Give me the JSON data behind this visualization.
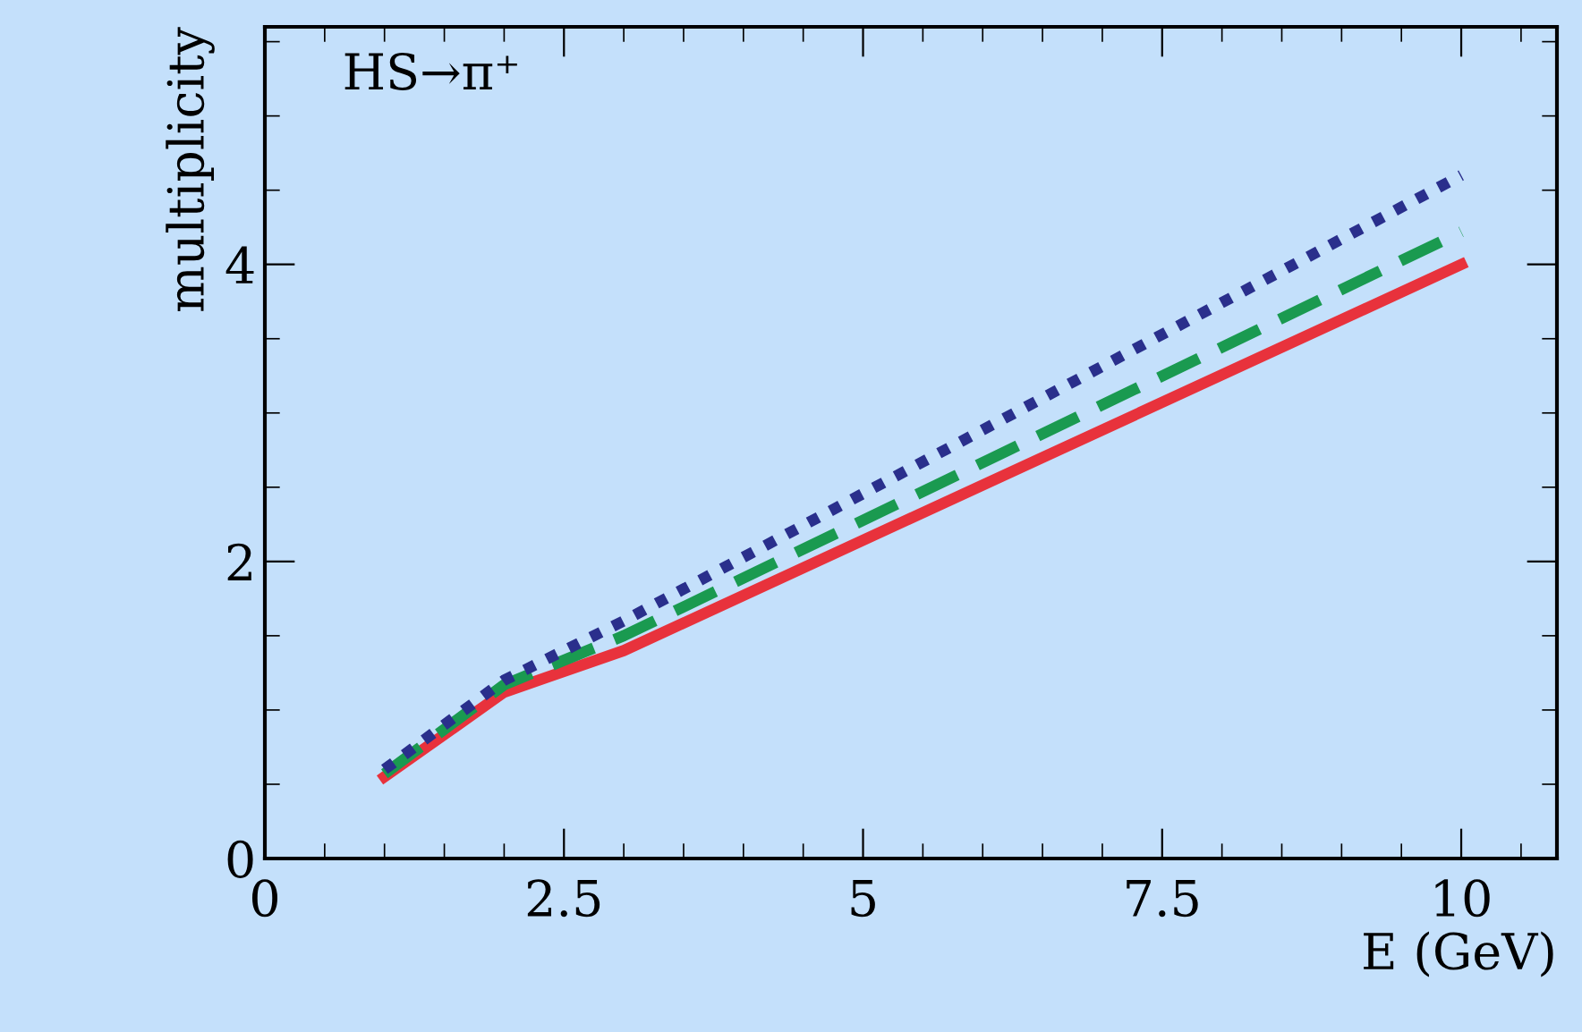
{
  "chart_data": {
    "type": "line",
    "xlabel": "E (GeV)",
    "ylabel": "multiplicity",
    "annotations": [
      "HS→π⁺"
    ],
    "xlim": [
      0,
      10.8
    ],
    "ylim": [
      0,
      5.6
    ],
    "xticks": [
      0,
      2.5,
      5,
      7.5,
      10
    ],
    "yticks": [
      0,
      2,
      4
    ],
    "grid": false,
    "legend": false,
    "marker": "none",
    "series": [
      {
        "color": "#e8323c",
        "line_style": "solid",
        "x": [
          1,
          2,
          3,
          10
        ],
        "values": [
          0.55,
          1.12,
          1.4,
          4.0
        ]
      },
      {
        "color": "#1a9a50",
        "line_style": "dashed",
        "x": [
          1,
          2,
          3,
          10
        ],
        "values": [
          0.57,
          1.17,
          1.5,
          4.22
        ]
      },
      {
        "color": "#2a2f8c",
        "line_style": "dotted",
        "x": [
          1,
          2,
          3,
          10
        ],
        "values": [
          0.6,
          1.2,
          1.6,
          4.6
        ]
      }
    ]
  }
}
